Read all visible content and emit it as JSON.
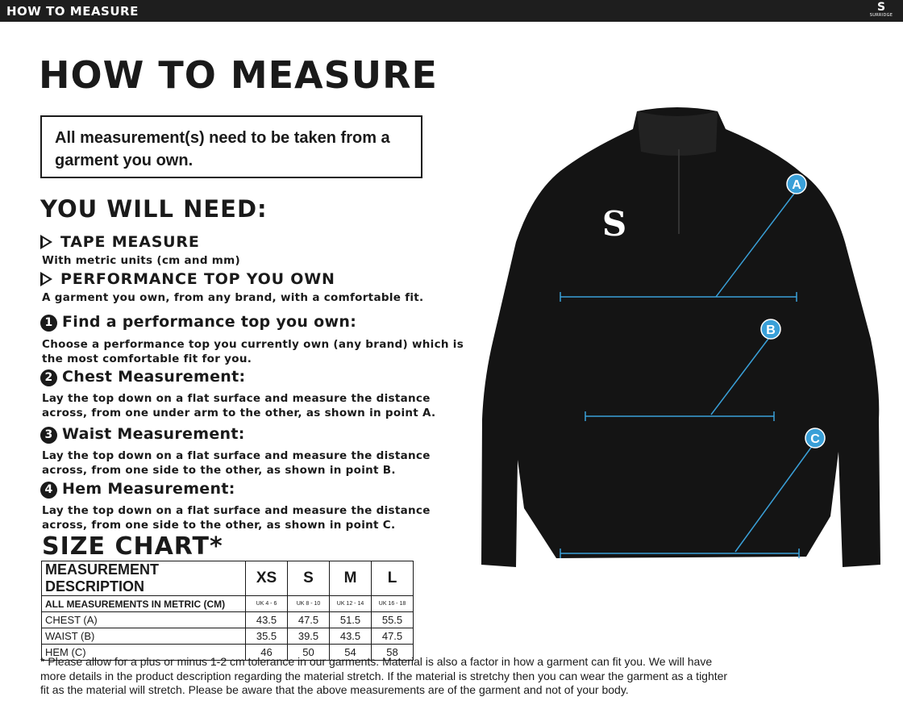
{
  "header": {
    "title": "HOW TO MEASURE",
    "brand": "SURRIDGE"
  },
  "title": "HOW TO MEASURE",
  "note": "All measurement(s) need to be taken from a garment you own.",
  "you_will_need": {
    "heading": "YOU WILL NEED:",
    "items": [
      {
        "label": "TAPE MEASURE",
        "desc": "With metric units (cm and mm)"
      },
      {
        "label": "PERFORMANCE TOP YOU OWN",
        "desc": "A garment you own, from any brand, with a comfortable fit."
      }
    ]
  },
  "steps": [
    {
      "num": "1",
      "title": "Find a performance top you own:",
      "text": "Choose a performance top you currently own (any brand) which is the most comfortable fit for you."
    },
    {
      "num": "2",
      "title": "Chest Measurement:",
      "text": "Lay the top down on a flat surface and measure the distance across, from one under arm to the other, as shown in point A."
    },
    {
      "num": "3",
      "title": "Waist Measurement:",
      "text": "Lay the top down on a flat surface and measure the distance across, from one side to the other, as shown in point B."
    },
    {
      "num": "4",
      "title": "Hem Measurement:",
      "text": "Lay the top down on a flat surface and measure the distance across, from one side to the other, as shown in point C."
    }
  ],
  "size_chart": {
    "heading": "SIZE CHART*",
    "header": [
      "MEASUREMENT DESCRIPTION",
      "XS",
      "S",
      "M",
      "L"
    ],
    "subheader": [
      "ALL MEASUREMENTS IN METRIC (CM)",
      "UK 4 - 6",
      "UK 8 - 10",
      "UK 12 - 14",
      "UK 16 - 18"
    ],
    "rows": [
      [
        "CHEST (A)",
        "43.5",
        "47.5",
        "51.5",
        "55.5"
      ],
      [
        "WAIST (B)",
        "35.5",
        "39.5",
        "43.5",
        "47.5"
      ],
      [
        "HEM (C)",
        "46",
        "50",
        "54",
        "58"
      ]
    ]
  },
  "footnote": "* Please allow for a plus or minus 1-2 cm tolerance in our garments. Material is also a factor in how a garment can fit you. We will have more details in the product description regarding the material stretch.  If the material is stretchy then you can wear the garment as a tighter fit as the material will stretch.  Please be aware that the above measurements are of the garment and not of your body.",
  "diagram": {
    "points": [
      "A",
      "B",
      "C"
    ],
    "accent": "#3aa0d8",
    "logo": "S"
  }
}
